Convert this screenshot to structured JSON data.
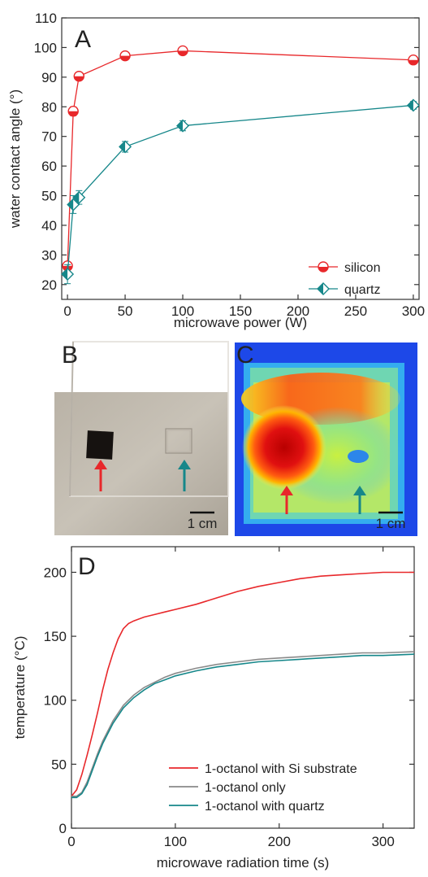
{
  "chart_data": [
    {
      "type": "scatter",
      "panel": "A",
      "xlabel": "microwave power (W)",
      "ylabel": "water contact angle (°)",
      "xlim": [
        -5,
        305
      ],
      "ylim": [
        15,
        110
      ],
      "xticks": [
        0,
        50,
        100,
        150,
        200,
        250,
        300
      ],
      "yticks": [
        20,
        30,
        40,
        50,
        60,
        70,
        80,
        90,
        100,
        110
      ],
      "legend_position": "bottom-right",
      "series": [
        {
          "name": "silicon",
          "color": "#e8282b",
          "marker": "half-filled-circle",
          "points": [
            {
              "x": 0,
              "y": 26.3,
              "err": 0.8
            },
            {
              "x": 5,
              "y": 78.5,
              "err": 1.5
            },
            {
              "x": 10,
              "y": 90.3,
              "err": 0.8
            },
            {
              "x": 50,
              "y": 97.2,
              "err": 0.6
            },
            {
              "x": 100,
              "y": 98.9,
              "err": 0.6
            },
            {
              "x": 300,
              "y": 95.8,
              "err": 0.6
            }
          ]
        },
        {
          "name": "quartz",
          "color": "#16878a",
          "marker": "half-filled-diamond",
          "points": [
            {
              "x": 0,
              "y": 23.5,
              "err": 3.2
            },
            {
              "x": 5,
              "y": 47,
              "err": 3.0
            },
            {
              "x": 10,
              "y": 49.4,
              "err": 2.3
            },
            {
              "x": 50,
              "y": 66.5,
              "err": 1.8
            },
            {
              "x": 100,
              "y": 73.6,
              "err": 1.7
            },
            {
              "x": 300,
              "y": 80.5,
              "err": 1.3
            }
          ]
        }
      ]
    },
    {
      "type": "line",
      "panel": "D",
      "xlabel": "microwave radiation time (s)",
      "ylabel": "temperature (°C)",
      "xlim": [
        0,
        330
      ],
      "ylim": [
        0,
        220
      ],
      "xticks": [
        0,
        100,
        200,
        300
      ],
      "yticks": [
        0,
        50,
        100,
        150,
        200
      ],
      "legend_position": "bottom-right",
      "series": [
        {
          "name": "1-octanol with Si substrate",
          "color": "#e8282b",
          "x": [
            0,
            5,
            10,
            15,
            20,
            25,
            30,
            35,
            40,
            45,
            50,
            55,
            60,
            70,
            80,
            90,
            100,
            120,
            140,
            160,
            180,
            200,
            220,
            240,
            260,
            280,
            300,
            320,
            330
          ],
          "y": [
            25,
            30,
            42,
            57,
            73,
            90,
            108,
            124,
            137,
            148,
            156,
            160,
            162,
            165,
            167,
            169,
            171,
            175,
            180,
            185,
            189,
            192,
            195,
            197,
            198,
            199,
            200,
            200,
            200
          ]
        },
        {
          "name": "1-octanol only",
          "color": "#8a8a8a",
          "x": [
            0,
            5,
            10,
            15,
            20,
            25,
            30,
            40,
            50,
            60,
            70,
            80,
            90,
            100,
            120,
            140,
            160,
            180,
            200,
            220,
            240,
            260,
            280,
            300,
            330
          ],
          "y": [
            25,
            25,
            28,
            36,
            47,
            58,
            68,
            84,
            96,
            104,
            110,
            114,
            118,
            121,
            125,
            128,
            130,
            132,
            133,
            134,
            135,
            136,
            137,
            137,
            138
          ]
        },
        {
          "name": "1-octanol with quartz",
          "color": "#16878a",
          "x": [
            0,
            5,
            10,
            15,
            20,
            25,
            30,
            40,
            50,
            60,
            70,
            80,
            90,
            100,
            120,
            140,
            160,
            180,
            200,
            220,
            240,
            260,
            280,
            300,
            330
          ],
          "y": [
            24,
            24,
            27,
            34,
            45,
            56,
            66,
            82,
            94,
            102,
            108,
            113,
            116,
            119,
            123,
            126,
            128,
            130,
            131,
            132,
            133,
            134,
            135,
            135,
            136
          ]
        }
      ]
    }
  ],
  "panels": {
    "A": {
      "label": "A"
    },
    "B": {
      "label": "B",
      "scale_bar": "1 cm",
      "arrow_colors": [
        "#e8282b",
        "#16878a"
      ]
    },
    "C": {
      "label": "C",
      "scale_bar": "1 cm",
      "arrow_colors": [
        "#e8282b",
        "#16878a"
      ]
    },
    "D": {
      "label": "D"
    }
  }
}
